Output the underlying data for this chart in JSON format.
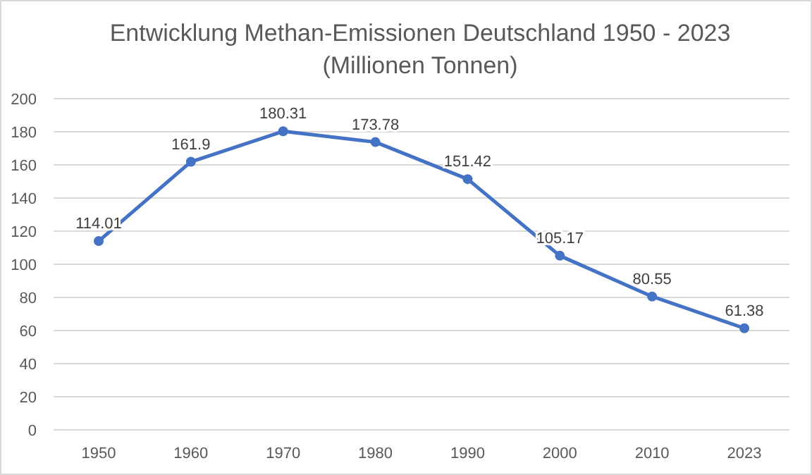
{
  "chart_data": {
    "type": "line",
    "title": "Entwicklung Methan-Emissionen Deutschland 1950 - 2023",
    "subtitle": "(Millionen Tonnen)",
    "categories": [
      "1950",
      "1960",
      "1970",
      "1980",
      "1990",
      "2000",
      "2010",
      "2023"
    ],
    "series": [
      {
        "color": "#4472c4",
        "values": [
          114.01,
          161.9,
          180.31,
          173.78,
          151.42,
          105.17,
          80.55,
          61.38
        ]
      }
    ],
    "ylim": [
      0,
      200
    ],
    "yticks": [
      0,
      20,
      40,
      60,
      80,
      100,
      120,
      140,
      160,
      180,
      200
    ],
    "grid": "y",
    "marker": "circle",
    "line_style": "solid",
    "data_labels": true
  }
}
